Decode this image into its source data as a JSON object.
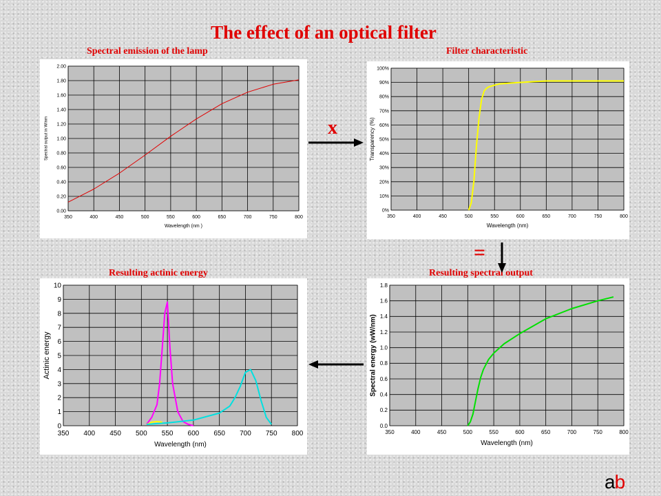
{
  "title": "The effect of an optical filter",
  "captions": {
    "lamp": "Spectral emission of the lamp",
    "filter": "Filter characteristic",
    "actinic": "Resulting actinic energy",
    "output": "Resulting spectral output"
  },
  "operators": {
    "multiply": "x",
    "equals": "="
  },
  "logo": {
    "a": "a",
    "b": "b"
  },
  "colors": {
    "title": "#e00000",
    "plot_bg": "#c0c0c0",
    "grid": "#000000"
  },
  "chart_data": [
    {
      "id": "lamp",
      "type": "line",
      "xlabel": "Wavelength (nm )",
      "ylabel": "Spectral output in W/nm",
      "xlim": [
        350,
        800
      ],
      "ylim": [
        0,
        2
      ],
      "xticks": [
        350,
        400,
        450,
        500,
        550,
        600,
        650,
        700,
        750,
        800
      ],
      "yticks": [
        0,
        0.2,
        0.4,
        0.6,
        0.8,
        1.0,
        1.2,
        1.4,
        1.6,
        1.8,
        2.0
      ],
      "ytick_labels": [
        "0.00",
        "0.20",
        "0.40",
        "0.60",
        "0.80",
        "1.00",
        "1.20",
        "1.40",
        "1.60",
        "1.80",
        "2.00"
      ],
      "grid": true,
      "series": [
        {
          "color": "#e00000",
          "x": [
            350,
            400,
            450,
            500,
            550,
            600,
            650,
            700,
            750,
            800
          ],
          "values": [
            0.12,
            0.3,
            0.52,
            0.77,
            1.03,
            1.27,
            1.48,
            1.64,
            1.75,
            1.81
          ]
        }
      ]
    },
    {
      "id": "filter",
      "type": "line",
      "xlabel": "Wavelength (nm)",
      "ylabel": "Transparency (%)",
      "xlim": [
        350,
        800
      ],
      "ylim": [
        0,
        100
      ],
      "xticks": [
        350,
        400,
        450,
        500,
        550,
        600,
        650,
        700,
        750,
        800
      ],
      "yticks": [
        0,
        10,
        20,
        30,
        40,
        50,
        60,
        70,
        80,
        90,
        100
      ],
      "ytick_labels": [
        "0%",
        "10%",
        "20%",
        "30%",
        "40%",
        "50%",
        "60%",
        "70%",
        "80%",
        "90%",
        "100%"
      ],
      "grid": true,
      "series": [
        {
          "color": "#ffff00",
          "x": [
            500,
            505,
            510,
            515,
            520,
            525,
            530,
            535,
            540,
            550,
            560,
            580,
            600,
            650,
            700,
            800
          ],
          "values": [
            0,
            5,
            20,
            45,
            65,
            78,
            84,
            86,
            87,
            88,
            89,
            89.5,
            90,
            91,
            91,
            91
          ]
        }
      ]
    },
    {
      "id": "actinic",
      "type": "line",
      "xlabel": "Wavelength (nm)",
      "ylabel": "Actinic energy",
      "xlim": [
        350,
        800
      ],
      "ylim": [
        0,
        10
      ],
      "xticks": [
        350,
        400,
        450,
        500,
        550,
        600,
        650,
        700,
        750,
        800
      ],
      "yticks": [
        0,
        1,
        2,
        3,
        4,
        5,
        6,
        7,
        8,
        9,
        10
      ],
      "ytick_labels": [
        "0",
        "1",
        "2",
        "3",
        "4",
        "5",
        "6",
        "7",
        "8",
        "9",
        "10"
      ],
      "grid": true,
      "series": [
        {
          "color": "#ff00ff",
          "x": [
            510,
            520,
            530,
            535,
            540,
            545,
            550,
            555,
            560,
            570,
            580,
            590,
            600
          ],
          "values": [
            0.1,
            0.6,
            1.5,
            3.0,
            5.5,
            8.0,
            8.8,
            5.5,
            3.0,
            1.0,
            0.3,
            0.1,
            0
          ]
        },
        {
          "color": "#ffff00",
          "x": [
            510,
            520,
            530,
            540
          ],
          "values": [
            0.1,
            0.25,
            0.3,
            0.25
          ]
        },
        {
          "color": "#00e0e0",
          "x": [
            510,
            550,
            600,
            650,
            670,
            680,
            690,
            700,
            710,
            720,
            730,
            740,
            750
          ],
          "values": [
            0.1,
            0.2,
            0.4,
            0.9,
            1.4,
            2.0,
            2.8,
            3.8,
            4.0,
            3.2,
            1.8,
            0.6,
            0.1
          ]
        }
      ]
    },
    {
      "id": "output",
      "type": "line",
      "xlabel": "Wavelength (nm)",
      "ylabel": "Spectral energy (wW/nm)",
      "xlim": [
        350,
        800
      ],
      "ylim": [
        0,
        1.8
      ],
      "xticks": [
        350,
        400,
        450,
        500,
        550,
        600,
        650,
        700,
        750,
        800
      ],
      "yticks": [
        0,
        0.2,
        0.4,
        0.6,
        0.8,
        1.0,
        1.2,
        1.4,
        1.6,
        1.8
      ],
      "ytick_labels": [
        "0.0",
        "0.2",
        "0.4",
        "0.6",
        "0.8",
        "1.0",
        "1.2",
        "1.4",
        "1.6",
        "1.8"
      ],
      "grid": true,
      "series": [
        {
          "color": "#00e000",
          "x": [
            500,
            505,
            510,
            515,
            520,
            525,
            530,
            540,
            550,
            570,
            600,
            650,
            700,
            750,
            780
          ],
          "values": [
            0,
            0.05,
            0.15,
            0.32,
            0.48,
            0.62,
            0.72,
            0.85,
            0.93,
            1.05,
            1.18,
            1.37,
            1.5,
            1.6,
            1.65
          ]
        }
      ]
    }
  ]
}
